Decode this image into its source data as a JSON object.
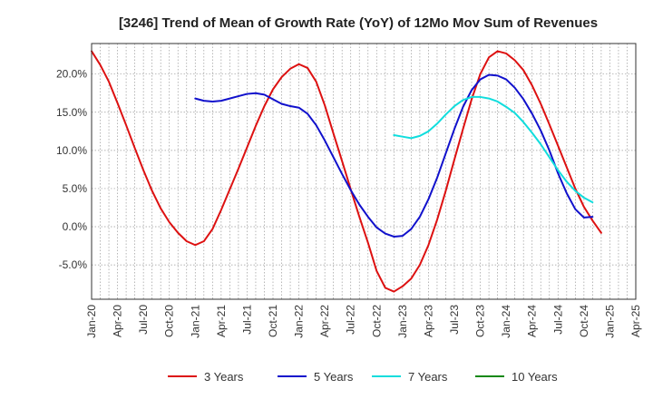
{
  "chart_data": {
    "type": "line",
    "title": "[3246]  Trend of Mean of Growth Rate (YoY) of 12Mo Mov Sum of Revenues",
    "xlabel": "",
    "ylabel": "",
    "x_tick_labels": [
      "Jan-20",
      "Apr-20",
      "Jul-20",
      "Oct-20",
      "Jan-21",
      "Apr-21",
      "Jul-21",
      "Oct-21",
      "Jan-22",
      "Apr-22",
      "Jul-22",
      "Oct-22",
      "Jan-23",
      "Apr-23",
      "Jul-23",
      "Oct-23",
      "Jan-24",
      "Apr-24",
      "Jul-24",
      "Oct-24",
      "Jan-25",
      "Apr-25"
    ],
    "y_ticks": [
      -5.0,
      0.0,
      5.0,
      10.0,
      15.0,
      20.0
    ],
    "y_tick_labels": [
      "-5.0%",
      "0.0%",
      "5.0%",
      "10.0%",
      "15.0%",
      "20.0%"
    ],
    "ylim": [
      -9.5,
      24
    ],
    "x_month_range": [
      0,
      63
    ],
    "grid": true,
    "legend_position": "bottom",
    "series": [
      {
        "name": "3 Years",
        "color": "#dd1111",
        "start_month": 0,
        "values": [
          23.0,
          21.2,
          19.0,
          16.2,
          13.3,
          10.3,
          7.4,
          4.7,
          2.4,
          0.6,
          -0.8,
          -1.9,
          -2.4,
          -1.9,
          -0.3,
          2.2,
          4.9,
          7.6,
          10.4,
          13.2,
          15.8,
          18.0,
          19.6,
          20.7,
          21.3,
          20.8,
          19.0,
          15.9,
          12.2,
          8.6,
          4.9,
          1.3,
          -2.1,
          -5.8,
          -8.0,
          -8.5,
          -7.8,
          -6.8,
          -5.0,
          -2.4,
          0.9,
          4.7,
          8.8,
          12.8,
          16.7,
          20.0,
          22.2,
          23.0,
          22.7,
          21.8,
          20.5,
          18.5,
          16.1,
          13.4,
          10.6,
          7.8,
          5.0,
          2.6,
          0.8,
          -0.8
        ]
      },
      {
        "name": "5 Years",
        "color": "#1111cc",
        "start_month": 12,
        "values": [
          16.8,
          16.5,
          16.4,
          16.5,
          16.8,
          17.1,
          17.4,
          17.5,
          17.3,
          16.7,
          16.1,
          15.8,
          15.6,
          14.8,
          13.3,
          11.3,
          9.1,
          6.9,
          4.8,
          2.9,
          1.3,
          -0.1,
          -0.9,
          -1.3,
          -1.2,
          -0.3,
          1.3,
          3.6,
          6.4,
          9.6,
          12.8,
          15.7,
          17.9,
          19.3,
          19.9,
          19.8,
          19.3,
          18.2,
          16.7,
          14.8,
          12.6,
          10.0,
          7.0,
          4.4,
          2.3,
          1.2,
          1.3
        ]
      },
      {
        "name": "7 Years",
        "color": "#11dddd",
        "start_month": 35,
        "values": [
          12.0,
          11.8,
          11.6,
          11.9,
          12.5,
          13.5,
          14.7,
          15.8,
          16.6,
          17.0,
          17.0,
          16.8,
          16.4,
          15.7,
          14.9,
          13.7,
          12.3,
          10.8,
          9.1,
          7.4,
          5.9,
          4.7,
          3.8,
          3.2
        ]
      },
      {
        "name": "10 Years",
        "color": "#118811",
        "start_month": 0,
        "values": []
      }
    ]
  }
}
